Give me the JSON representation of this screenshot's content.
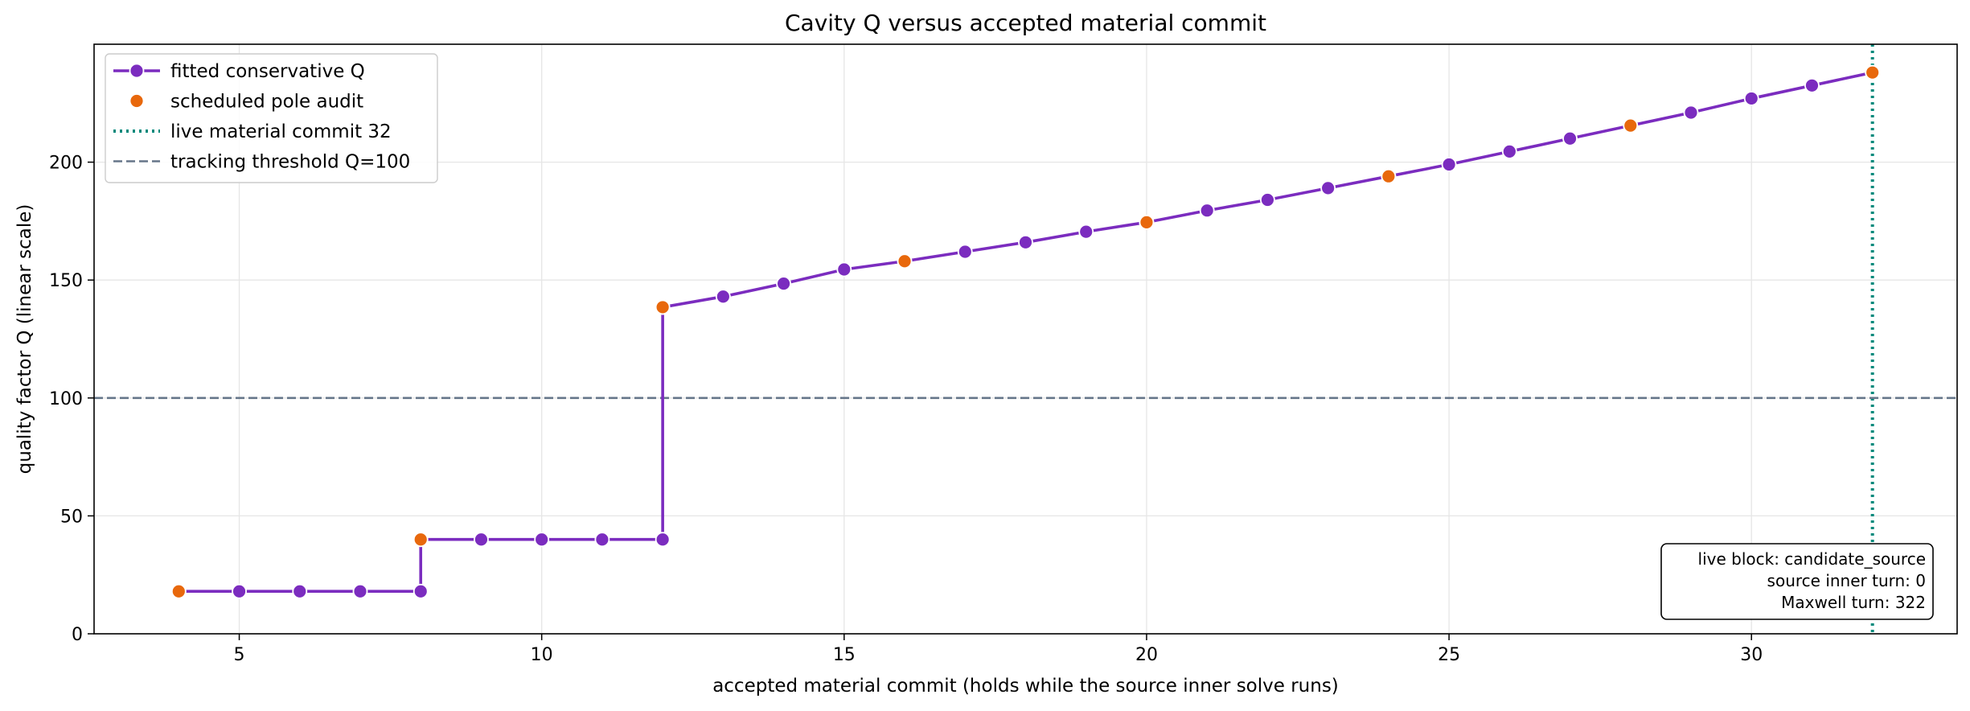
{
  "chart_data": {
    "type": "line",
    "title": "Cavity Q versus accepted material commit",
    "xlabel": "accepted material commit (holds while the source inner solve runs)",
    "ylabel": "quality factor Q (linear scale)",
    "xlim": [
      2.6,
      33.4
    ],
    "ylim": [
      0,
      250
    ],
    "xticks": [
      5,
      10,
      15,
      20,
      25,
      30
    ],
    "yticks": [
      0,
      50,
      100,
      150,
      200
    ],
    "grid": true,
    "legend_position": "top-left",
    "series": [
      {
        "name": "fitted conservative Q",
        "style": "step-then-line",
        "color": "#7b2cbf",
        "x": [
          4,
          5,
          6,
          7,
          8,
          8,
          9,
          10,
          11,
          12,
          12,
          13,
          14,
          15,
          16,
          17,
          18,
          19,
          20,
          21,
          22,
          23,
          24,
          25,
          26,
          27,
          28,
          29,
          30,
          31,
          32
        ],
        "y": [
          18,
          18,
          18,
          18,
          18,
          40,
          40,
          40,
          40,
          40,
          138.5,
          143,
          148.5,
          154.5,
          158,
          162,
          166,
          170.5,
          174.5,
          179.5,
          184,
          189,
          194,
          199,
          204.5,
          210,
          215.5,
          221,
          227,
          232.5,
          238
        ]
      },
      {
        "name": "scheduled pole audit",
        "style": "scatter",
        "color": "#e8680c",
        "x": [
          4,
          8,
          12,
          16,
          20,
          24,
          28,
          32
        ],
        "y": [
          18,
          40,
          138.5,
          158,
          174.5,
          194,
          215.5,
          238
        ]
      }
    ],
    "reference_lines": [
      {
        "name": "live material commit 32",
        "orientation": "vertical",
        "value": 32,
        "style": "dotted",
        "color": "#00897b"
      },
      {
        "name": "tracking threshold Q=100",
        "orientation": "horizontal",
        "value": 100,
        "style": "dashed",
        "color": "#66768a"
      }
    ],
    "annotation": {
      "position": "bottom-right",
      "lines": [
        "live block: candidate_source",
        "source inner turn: 0",
        "Maxwell turn: 322"
      ]
    }
  }
}
